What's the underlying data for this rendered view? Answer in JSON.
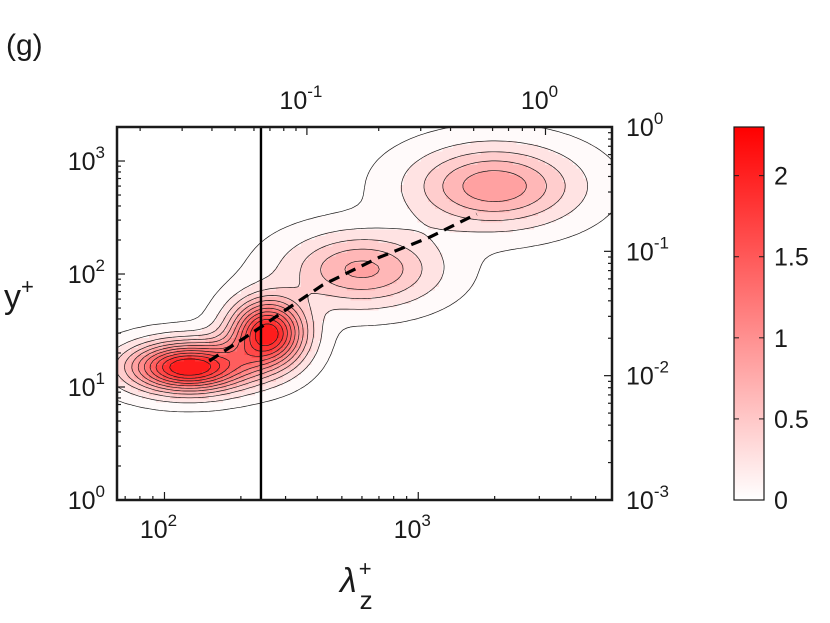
{
  "panel_label": "(g)",
  "chart_data": {
    "type": "contour",
    "xlabel": {
      "base": "λ",
      "sup": "+",
      "sub": "z"
    },
    "ylabel": {
      "base": "y",
      "sup": "+"
    },
    "x_scale": "log",
    "y_scale": "log",
    "xlim": [
      65,
      5800
    ],
    "ylim": [
      1,
      2000
    ],
    "top_xlim": [
      0.016,
      1.9
    ],
    "right_ylim": [
      0.001,
      1
    ],
    "x_ticks": [
      {
        "base": "10",
        "exp": "2",
        "value": 100
      },
      {
        "base": "10",
        "exp": "3",
        "value": 1000
      }
    ],
    "y_ticks": [
      {
        "base": "10",
        "exp": "0",
        "value": 1
      },
      {
        "base": "10",
        "exp": "1",
        "value": 10
      },
      {
        "base": "10",
        "exp": "2",
        "value": 100
      },
      {
        "base": "10",
        "exp": "3",
        "value": 1000
      }
    ],
    "top_ticks": [
      {
        "base": "10",
        "exp": "-1",
        "value": 0.1
      },
      {
        "base": "10",
        "exp": "0",
        "value": 1
      }
    ],
    "right_ticks": [
      {
        "base": "10",
        "exp": "-3",
        "value": 0.001
      },
      {
        "base": "10",
        "exp": "-2",
        "value": 0.01
      },
      {
        "base": "10",
        "exp": "-1",
        "value": 0.1
      },
      {
        "base": "10",
        "exp": "0",
        "value": 1
      }
    ],
    "vertical_line_x": 240,
    "ridge_line": {
      "style": "dashed",
      "x": [
        150,
        240,
        300,
        420,
        700,
        1100,
        1700
      ],
      "y": [
        17,
        34,
        48,
        80,
        140,
        210,
        340
      ]
    },
    "peaks": [
      {
        "x": 125,
        "y": 15,
        "amplitude": 2.3,
        "spread_x": 0.16,
        "spread_y": 0.15
      },
      {
        "x": 255,
        "y": 30,
        "amplitude": 2.2,
        "spread_x": 0.1,
        "spread_y": 0.2
      },
      {
        "x": 600,
        "y": 110,
        "amplitude": 0.9,
        "spread_x": 0.2,
        "spread_y": 0.22
      },
      {
        "x": 2000,
        "y": 600,
        "amplitude": 1.0,
        "spread_x": 0.22,
        "spread_y": 0.24
      }
    ],
    "contour_levels": [
      0.07,
      0.25,
      0.45,
      0.65,
      0.85,
      1.05,
      1.25,
      1.45,
      1.65,
      1.85,
      2.05
    ],
    "colorbar": {
      "min": 0,
      "max": 2.3,
      "color_low": "#ffffff",
      "color_high": "#ff0000",
      "ticks": [
        {
          "value": 0,
          "label": "0"
        },
        {
          "value": 0.5,
          "label": "0.5"
        },
        {
          "value": 1,
          "label": "1"
        },
        {
          "value": 1.5,
          "label": "1.5"
        },
        {
          "value": 2,
          "label": "2"
        }
      ]
    }
  }
}
